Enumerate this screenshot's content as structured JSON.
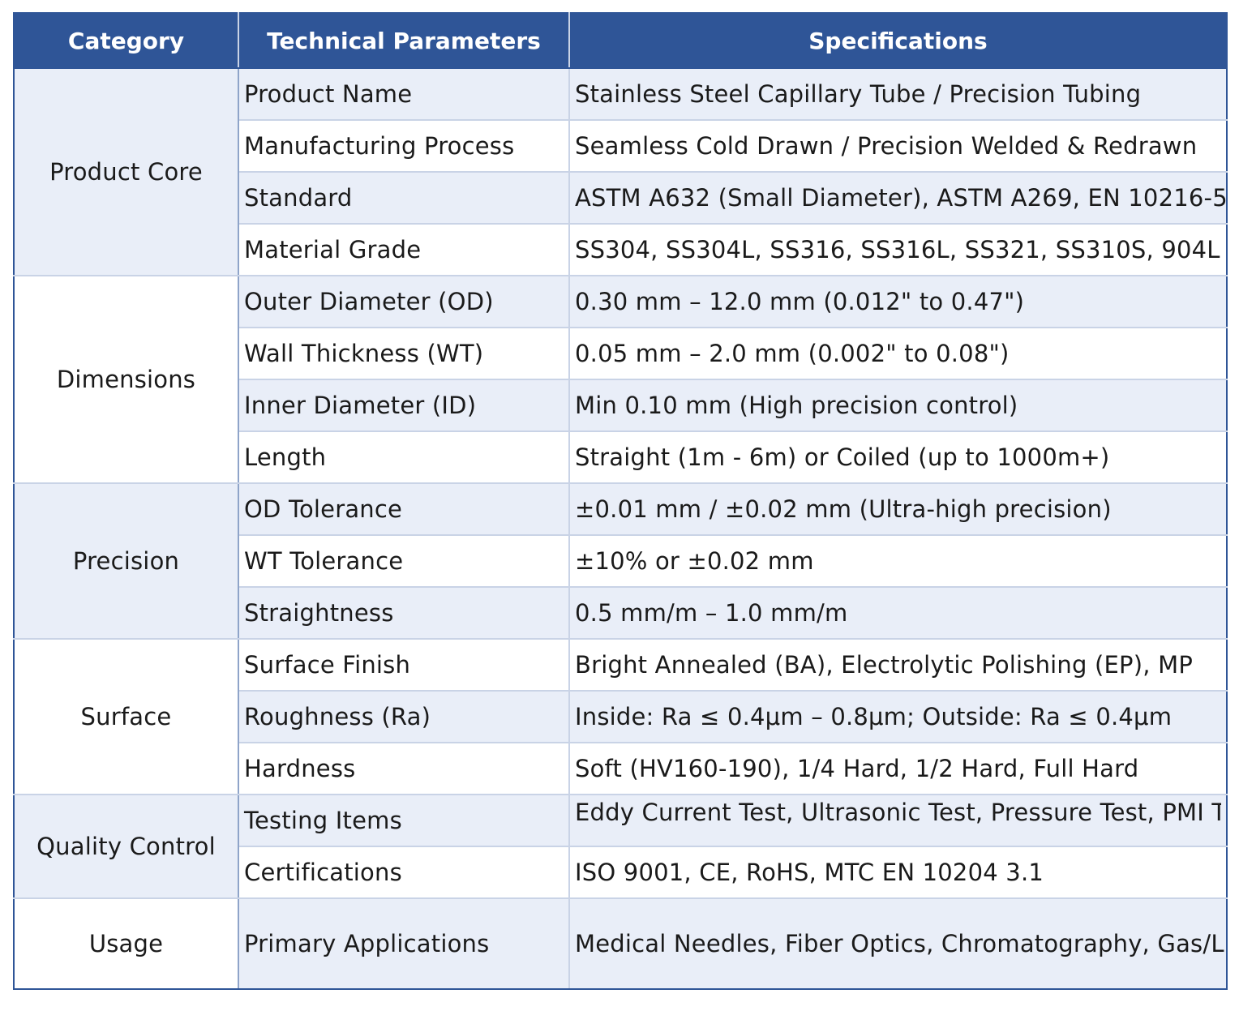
{
  "headers": [
    "Category",
    "Technical Parameters",
    "Specifications"
  ],
  "groups": [
    {
      "category": "Product Core",
      "rows": [
        {
          "param": "Product Name",
          "spec": "Stainless Steel Capillary Tube / Precision Tubing"
        },
        {
          "param": "Manufacturing Process",
          "spec": "Seamless Cold Drawn / Precision Welded & Redrawn"
        },
        {
          "param": "Standard",
          "spec": "ASTM A632 (Small Diameter), ASTM A269, EN 10216-5"
        },
        {
          "param": "Material Grade",
          "spec": "SS304, SS304L, SS316, SS316L, SS321, SS310S, 904L"
        }
      ]
    },
    {
      "category": "Dimensions",
      "rows": [
        {
          "param": "Outer Diameter (OD)",
          "spec": "0.30 mm – 12.0 mm (0.012\" to 0.47\")"
        },
        {
          "param": "Wall Thickness (WT)",
          "spec": "0.05 mm – 2.0 mm (0.002\" to 0.08\")"
        },
        {
          "param": "Inner Diameter (ID)",
          "spec": "Min 0.10 mm (High precision control)"
        },
        {
          "param": "Length",
          "spec": "Straight (1m - 6m) or Coiled (up to 1000m+)"
        }
      ]
    },
    {
      "category": "Precision",
      "rows": [
        {
          "param": "OD Tolerance",
          "spec": "±0.01 mm / ±0.02 mm (Ultra-high precision)"
        },
        {
          "param": "WT Tolerance",
          "spec": "±10% or ±0.02 mm"
        },
        {
          "param": "Straightness",
          "spec": "0.5 mm/m – 1.0 mm/m"
        }
      ]
    },
    {
      "category": "Surface",
      "rows": [
        {
          "param": "Surface Finish",
          "spec": "Bright Annealed (BA), Electrolytic Polishing (EP), MP"
        },
        {
          "param": "Roughness (Ra)",
          "spec": "Inside: Ra ≤ 0.4μm – 0.8μm; Outside: Ra ≤ 0.4μm"
        },
        {
          "param": "Hardness",
          "spec": "Soft (HV160-190), 1/4 Hard, 1/2 Hard, Full Hard"
        }
      ]
    },
    {
      "category": "Quality Control",
      "rows": [
        {
          "param": "Testing Items",
          "spec": "Eddy Current Test, Ultrasonic Test, Pressure Test, PMI Test"
        },
        {
          "param": "Certifications",
          "spec": "ISO 9001, CE, RoHS, MTC EN 10204 3.1"
        }
      ]
    },
    {
      "category": "Usage",
      "rows": [
        {
          "param": "Primary Applications",
          "spec": "Medical Needles, Fiber Optics, Chromatography, Gas/Liquid Control"
        }
      ]
    }
  ],
  "colors": {
    "header_bg": "#2f5597",
    "header_text": "#ffffff",
    "row_shade": "#e9eef8",
    "border": "#c9d3e6"
  }
}
